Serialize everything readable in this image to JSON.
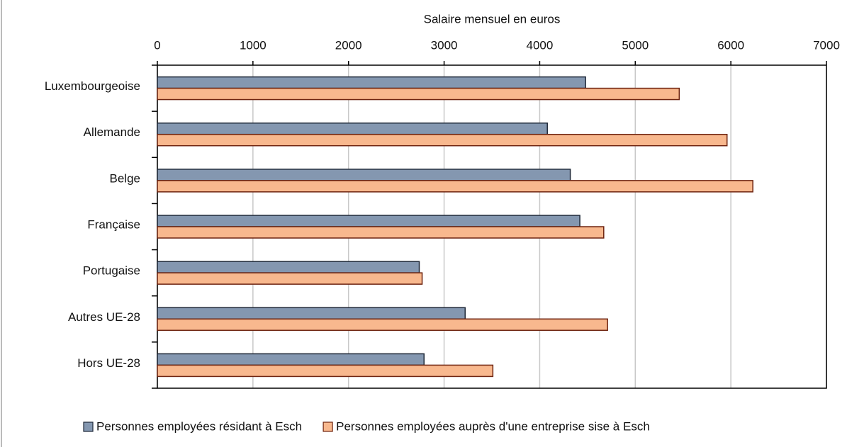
{
  "chart_data": {
    "type": "hbar",
    "x_label": "Salaire mensuel en euros",
    "categories": [
      "Luxembourgeoise",
      "Allemande",
      "Belge",
      "Française",
      "Portugaise",
      "Autres UE-28",
      "Hors UE-28"
    ],
    "series": [
      {
        "name": "Personnes employées résidant à Esch",
        "color": "#8497b0",
        "values": [
          4480,
          4080,
          4320,
          4420,
          2740,
          3220,
          2790
        ]
      },
      {
        "name": "Personnes employées auprès d'une entreprise sise à Esch",
        "color": "#f8b88e",
        "values": [
          5460,
          5960,
          6230,
          4670,
          2770,
          4710,
          3510
        ]
      }
    ],
    "xlim": [
      0,
      7000
    ],
    "xticks": [
      0,
      1000,
      2000,
      3000,
      4000,
      5000,
      6000,
      7000
    ],
    "grid": true
  }
}
